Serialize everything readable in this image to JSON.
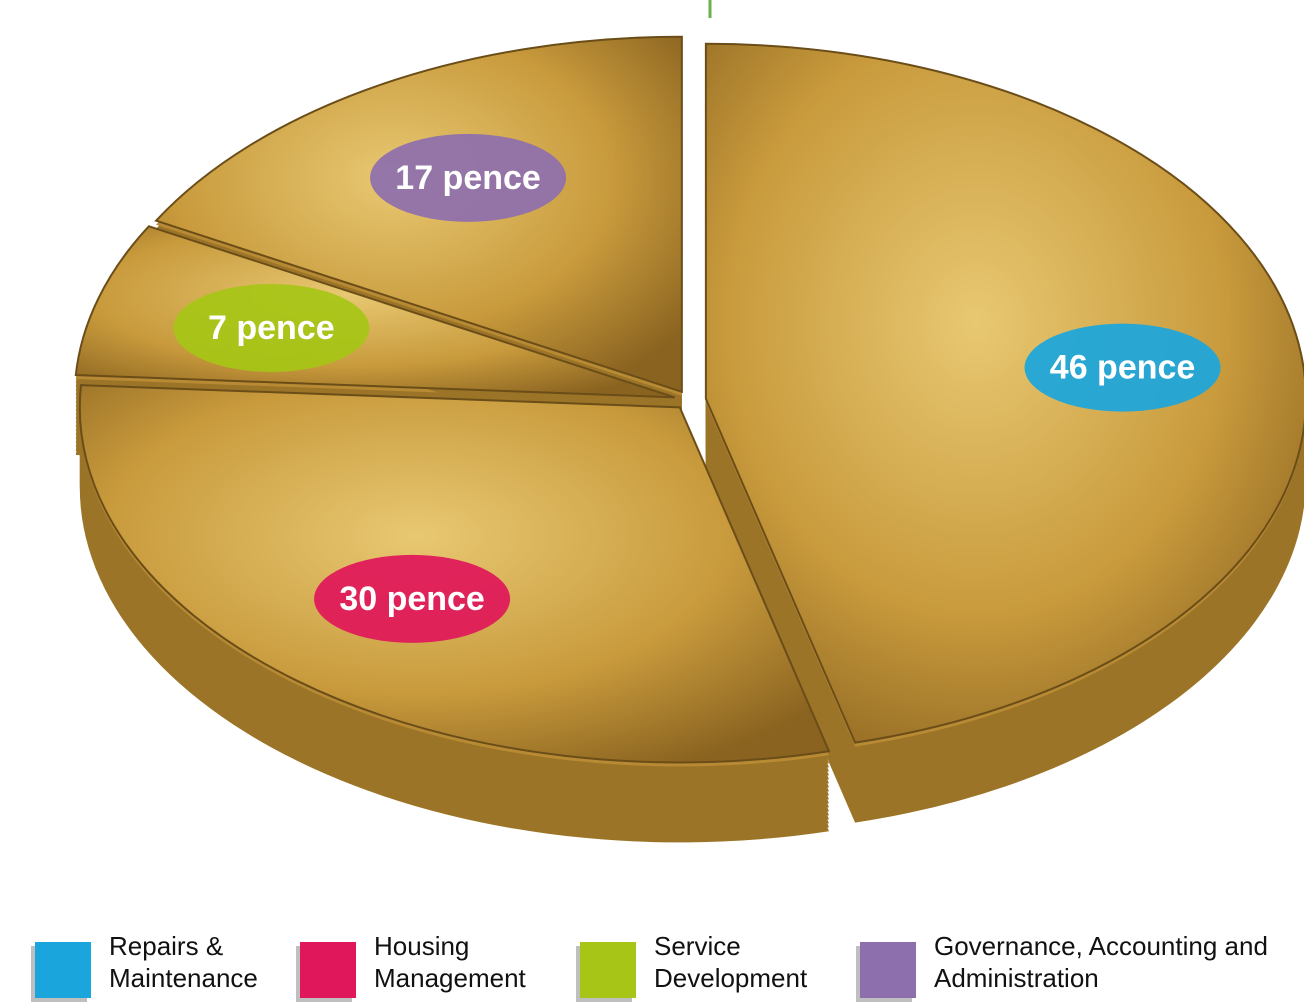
{
  "chart_data": {
    "type": "pie",
    "categories": [
      "Repairs & Maintenance",
      "Housing Management",
      "Service Development",
      "Governance, Accounting and Administration"
    ],
    "values": [
      46,
      30,
      7,
      17
    ],
    "value_labels": [
      "46 pence",
      "30 pence",
      "7 pence",
      "17 pence"
    ],
    "colors": [
      "#1aa6dd",
      "#e0175a",
      "#a6c516",
      "#8e6fae"
    ]
  }
}
